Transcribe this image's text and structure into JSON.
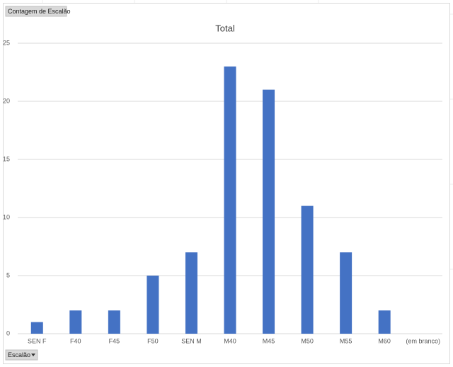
{
  "chart_data": {
    "type": "bar",
    "title": "Total",
    "value_field_button": "Contagem de Escalão",
    "axis_field_button": "Escalão",
    "categories": [
      "SEN F",
      "F40",
      "F45",
      "F50",
      "SEN M",
      "M40",
      "M45",
      "M50",
      "M55",
      "M60",
      "(em branco)"
    ],
    "values": [
      1,
      2,
      2,
      5,
      7,
      23,
      21,
      11,
      7,
      2,
      null
    ],
    "color": "#4472c4",
    "ylim": [
      0,
      25
    ],
    "yticks": [
      0,
      5,
      10,
      15,
      20,
      25
    ],
    "grid": true
  }
}
